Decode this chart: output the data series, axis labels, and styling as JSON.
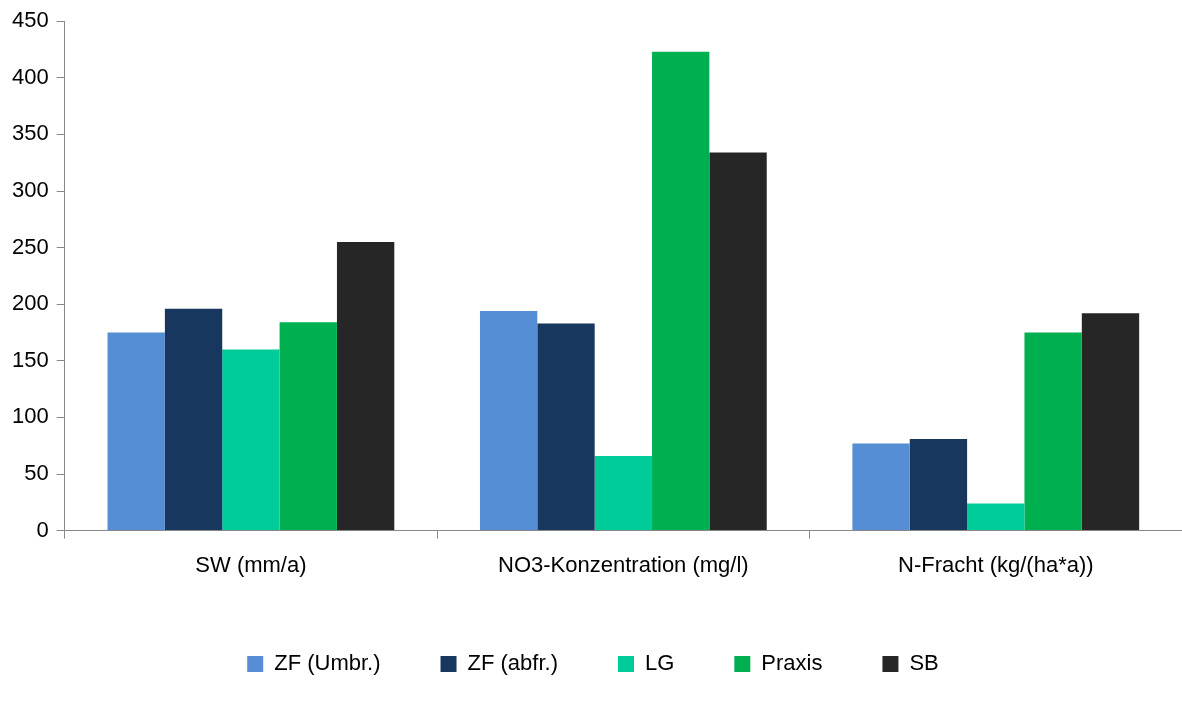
{
  "chart_data": {
    "type": "bar",
    "categories": [
      "SW (mm/a)",
      "NO3-Konzentration (mg/l)",
      "N-Fracht (kg/(ha*a))"
    ],
    "series": [
      {
        "name": "ZF (Umbr.)",
        "color": "#558ed5",
        "values": [
          175,
          194,
          77
        ]
      },
      {
        "name": "ZF (abfr.)",
        "color": "#17375e",
        "values": [
          196,
          183,
          81
        ]
      },
      {
        "name": "LG",
        "color": "#00cc99",
        "values": [
          160,
          66,
          24
        ]
      },
      {
        "name": "Praxis",
        "color": "#00b050",
        "values": [
          184,
          423,
          175
        ]
      },
      {
        "name": "SB",
        "color": "#262626",
        "values": [
          255,
          334,
          192
        ]
      }
    ],
    "ylim": [
      0,
      450
    ],
    "yticks": [
      0,
      50,
      100,
      150,
      200,
      250,
      300,
      350,
      400,
      450
    ],
    "grid": false,
    "legend": "bottom"
  }
}
